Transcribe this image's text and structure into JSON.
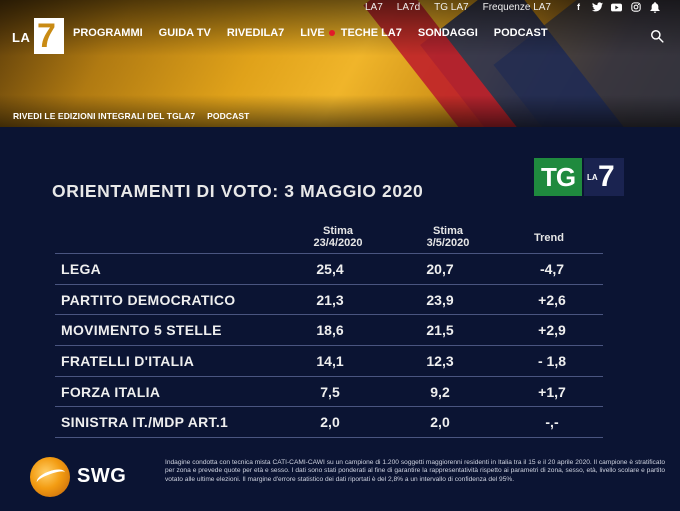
{
  "topbar": {
    "links": [
      "LA7",
      "LA7d",
      "TG LA7",
      "Frequenze LA7"
    ],
    "social_icons": [
      "facebook-icon",
      "twitter-icon",
      "youtube-icon",
      "instagram-icon",
      "bell-icon"
    ]
  },
  "logo": {
    "la": "LA",
    "num": "7"
  },
  "nav": {
    "items": [
      "PROGRAMMI",
      "GUIDA TV",
      "RIVEDILA7",
      "LIVE",
      "TECHE LA7",
      "SONDAGGI",
      "PODCAST"
    ],
    "live_indicator_color": "#e21a2a"
  },
  "subnav": {
    "items": [
      "RIVEDI LE EDIZIONI INTEGRALI DEL TGLA7",
      "PODCAST"
    ]
  },
  "poll": {
    "badge": {
      "tg": "TG",
      "la": "LA",
      "num": "7"
    },
    "title": "ORIENTAMENTI DI VOTO: 3 MAGGIO 2020",
    "columns": [
      {
        "line1": "Stima",
        "line2": "23/4/2020"
      },
      {
        "line1": "Stima",
        "line2": "3/5/2020"
      },
      {
        "line1": "Trend",
        "line2": ""
      }
    ],
    "rows": [
      {
        "party": "LEGA",
        "v1": "25,4",
        "v2": "20,7",
        "trend": "-4,7"
      },
      {
        "party": "PARTITO DEMOCRATICO",
        "v1": "21,3",
        "v2": "23,9",
        "trend": "+2,6"
      },
      {
        "party": "MOVIMENTO 5 STELLE",
        "v1": "18,6",
        "v2": "21,5",
        "trend": "+2,9"
      },
      {
        "party": "FRATELLI D'ITALIA",
        "v1": "14,1",
        "v2": "12,3",
        "trend": "- 1,8"
      },
      {
        "party": "FORZA ITALIA",
        "v1": "7,5",
        "v2": "9,2",
        "trend": "+1,7"
      },
      {
        "party": "SINISTRA IT./MDP ART.1",
        "v1": "2,0",
        "v2": "2,0",
        "trend": "-,-"
      }
    ],
    "source_logo": "SWG",
    "footnote": "Indagine condotta con tecnica mista CATI-CAMI-CAWI su un campione di 1.200 soggetti maggiorenni residenti in Italia tra il 15 e il 20 aprile 2020. Il campione è stratificato per zona e prevede quote per età e sesso. I dati sono stati ponderati al fine di garantire la rappresentatività rispetto ai parametri di zona, sesso, età, livello scolare e partito votato alle ultime elezioni. Il margine d'errore statistico dei dati riportati è del 2,8% a un intervallo di confidenza del 95%."
  }
}
